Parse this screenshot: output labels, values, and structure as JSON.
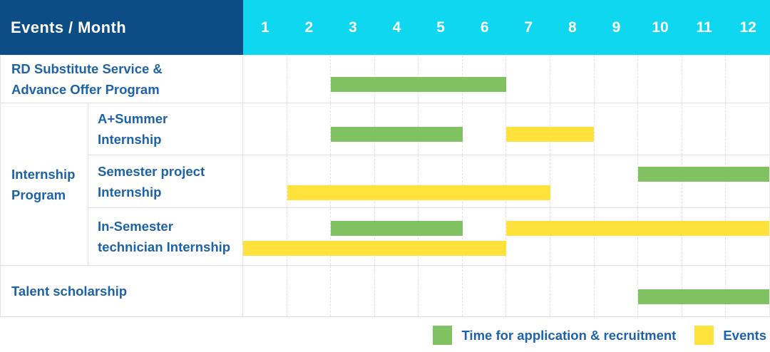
{
  "table": {
    "header_label": "Events / Month",
    "months": [
      "1",
      "2",
      "3",
      "4",
      "5",
      "6",
      "7",
      "8",
      "9",
      "10",
      "11",
      "12"
    ],
    "rows": [
      {
        "label": "RD Substitute Service &\nAdvance Offer Program"
      },
      {
        "group": "Internship\nProgram",
        "label": "A+Summer\nInternship"
      },
      {
        "label": "Semester project\nInternship"
      },
      {
        "label": "In-Semester\ntechnician Internship"
      },
      {
        "label": "Talent scholarship"
      }
    ]
  },
  "legend": [
    {
      "label": "Time for application & recruitment",
      "color_hex": "#80c262"
    },
    {
      "label": "Events",
      "color_hex": "#ffe33c"
    }
  ],
  "colors": {
    "header_navy": "#0d4d86",
    "header_cyan": "#0fd7ef",
    "bar_green": "#80c262",
    "bar_yellow": "#ffe33c",
    "label_blue": "#1e63a9",
    "grid_line": "#e2e2e2"
  },
  "chart_data": {
    "type": "gantt",
    "title": "Events / Month",
    "x_axis": {
      "label": "Month",
      "ticks": [
        "1",
        "2",
        "3",
        "4",
        "5",
        "6",
        "7",
        "8",
        "9",
        "10",
        "11",
        "12"
      ],
      "range": [
        1,
        12
      ],
      "grid": "dashed-vertical"
    },
    "series_colors": {
      "Time for application & recruitment": "#80c262",
      "Events": "#ffe33c"
    },
    "legend_position": "bottom-right",
    "rows": [
      {
        "group": null,
        "label": "RD Substitute Service & Advance Offer Program",
        "bars": [
          {
            "series": "Time for application & recruitment",
            "start_month": 3,
            "end_month": 6,
            "line": "single"
          }
        ]
      },
      {
        "group": "Internship Program",
        "label": "A+Summer Internship",
        "bars": [
          {
            "series": "Time for application & recruitment",
            "start_month": 3,
            "end_month": 5,
            "line": "single"
          },
          {
            "series": "Events",
            "start_month": 7,
            "end_month": 8,
            "line": "single"
          }
        ]
      },
      {
        "group": "Internship Program",
        "label": "Semester project Internship",
        "bars": [
          {
            "series": "Time for application & recruitment",
            "start_month": 10,
            "end_month": 12,
            "line": "top"
          },
          {
            "series": "Events",
            "start_month": 2,
            "end_month": 7,
            "line": "bottom"
          }
        ]
      },
      {
        "group": "Internship Program",
        "label": "In-Semester technician Internship",
        "bars": [
          {
            "series": "Time for application & recruitment",
            "start_month": 3,
            "end_month": 5,
            "line": "top"
          },
          {
            "series": "Events",
            "start_month": 7,
            "end_month": 12,
            "line": "top"
          },
          {
            "series": "Events",
            "start_month": 1,
            "end_month": 6,
            "line": "bottom"
          }
        ]
      },
      {
        "group": null,
        "label": "Talent scholarship",
        "bars": [
          {
            "series": "Time for application & recruitment",
            "start_month": 10,
            "end_month": 12,
            "line": "single"
          }
        ]
      }
    ]
  }
}
